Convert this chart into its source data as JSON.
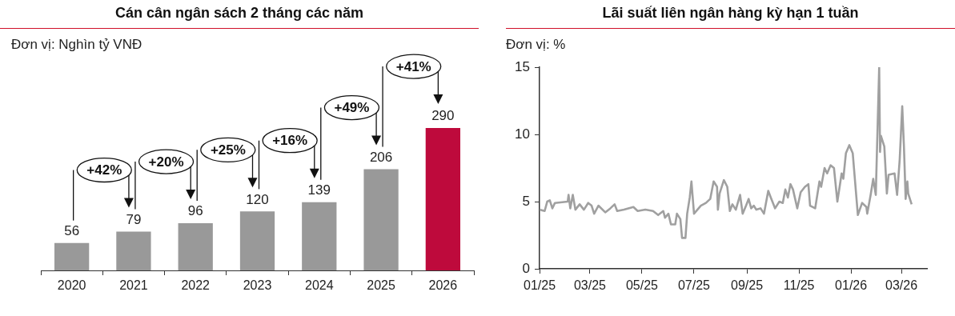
{
  "chart_data": [
    {
      "type": "bar",
      "title": "Cán cân ngân sách 2 tháng các năm",
      "subtitle": "Đơn vị: Nghìn tỷ VNĐ",
      "categories": [
        "2020",
        "2021",
        "2022",
        "2023",
        "2024",
        "2025",
        "2026"
      ],
      "values": [
        56,
        79,
        96,
        120,
        139,
        206,
        290
      ],
      "colors": [
        "#999999",
        "#999999",
        "#999999",
        "#999999",
        "#999999",
        "#999999",
        "#be0a3c"
      ],
      "data_labels": true,
      "grid": false,
      "legend": false,
      "annotations": [
        "+42%",
        "+20%",
        "+25%",
        "+16%",
        "+49%",
        "+41%"
      ]
    },
    {
      "type": "line",
      "title": "Lãi suất liên ngân hàng kỳ hạn 1 tuần",
      "subtitle": "Đơn vị: %",
      "x": [
        "2025-01-01",
        "2025-01-07",
        "2025-01-10",
        "2025-01-13",
        "2025-01-16",
        "2025-01-19",
        "2025-02-03",
        "2025-02-04",
        "2025-02-06",
        "2025-02-09",
        "2025-02-12",
        "2025-02-17",
        "2025-02-22",
        "2025-02-27",
        "2025-03-03",
        "2025-03-06",
        "2025-03-11",
        "2025-03-19",
        "2025-03-25",
        "2025-03-30",
        "2025-04-02",
        "2025-04-10",
        "2025-04-21",
        "2025-04-26",
        "2025-05-05",
        "2025-05-14",
        "2025-05-20",
        "2025-05-26",
        "2025-05-28",
        "2025-06-01",
        "2025-06-04",
        "2025-06-09",
        "2025-06-11",
        "2025-06-15",
        "2025-06-17",
        "2025-06-21",
        "2025-06-23",
        "2025-06-26",
        "2025-06-28",
        "2025-07-01",
        "2025-07-09",
        "2025-07-15",
        "2025-07-20",
        "2025-07-24",
        "2025-07-28",
        "2025-07-29",
        "2025-07-31",
        "2025-08-05",
        "2025-08-09",
        "2025-08-12",
        "2025-08-15",
        "2025-08-19",
        "2025-08-24",
        "2025-08-27",
        "2025-08-31",
        "2025-09-03",
        "2025-09-06",
        "2025-09-09",
        "2025-09-12",
        "2025-09-17",
        "2025-09-21",
        "2025-09-26",
        "2025-09-29",
        "2025-10-04",
        "2025-10-09",
        "2025-10-13",
        "2025-10-16",
        "2025-10-19",
        "2025-10-22",
        "2025-10-25",
        "2025-10-30",
        "2025-11-03",
        "2025-11-08",
        "2025-11-12",
        "2025-11-14",
        "2025-11-20",
        "2025-11-25",
        "2025-11-27",
        "2025-12-01",
        "2025-12-04",
        "2025-12-08",
        "2025-12-12",
        "2025-12-16",
        "2025-12-21",
        "2025-12-23",
        "2025-12-26",
        "2025-12-30",
        "2026-01-03",
        "2026-01-09",
        "2026-01-14",
        "2026-01-19",
        "2026-01-20",
        "2026-01-24",
        "2026-01-27",
        "2026-01-30",
        "2026-02-03",
        "2026-02-04",
        "2026-02-05",
        "2026-02-09",
        "2026-02-12",
        "2026-02-14",
        "2026-02-21",
        "2026-02-24",
        "2026-02-27",
        "2026-03-02",
        "2026-03-04",
        "2026-03-06",
        "2026-03-08",
        "2026-03-09",
        "2026-03-13"
      ],
      "series": [
        {
          "color": "#a0a0a0",
          "values": [
            4.4,
            4.3,
            5.0,
            5.1,
            4.5,
            4.9,
            5.0,
            5.5,
            4.5,
            5.5,
            4.4,
            4.8,
            4.4,
            4.9,
            4.7,
            4.1,
            4.7,
            4.2,
            4.5,
            4.8,
            4.3,
            4.4,
            4.6,
            4.3,
            4.4,
            4.3,
            4.0,
            4.3,
            3.8,
            4.1,
            3.3,
            3.3,
            4.1,
            3.7,
            2.3,
            2.3,
            4.1,
            5.3,
            6.5,
            4.1,
            4.7,
            4.9,
            5.2,
            6.5,
            6.1,
            4.4,
            5.6,
            6.6,
            6.1,
            4.3,
            4.8,
            4.4,
            5.5,
            4.1,
            4.7,
            5.2,
            4.5,
            4.7,
            4.4,
            4.5,
            4.1,
            5.8,
            5.3,
            4.5,
            5.0,
            4.9,
            5.9,
            5.3,
            6.3,
            5.9,
            4.5,
            5.7,
            6.1,
            6.3,
            4.7,
            4.5,
            6.5,
            6.1,
            7.5,
            7.1,
            7.7,
            7.5,
            5.0,
            7.1,
            6.7,
            8.6,
            9.2,
            8.6,
            4.0,
            4.9,
            4.6,
            4.1,
            5.5,
            6.7,
            5.5,
            15.0,
            8.7,
            9.9,
            9.1,
            5.6,
            7.0,
            7.1,
            5.5,
            8.1,
            12.1,
            9.1,
            5.2,
            6.5,
            5.6,
            4.8
          ]
        }
      ],
      "xlim": [
        "2025-01-01",
        "2026-03-31"
      ],
      "xticks": [
        {
          "value": "2025-01-01",
          "label": "01/25"
        },
        {
          "value": "2025-03-01",
          "label": "03/25"
        },
        {
          "value": "2025-05-01",
          "label": "05/25"
        },
        {
          "value": "2025-07-01",
          "label": "07/25"
        },
        {
          "value": "2025-09-01",
          "label": "09/25"
        },
        {
          "value": "2025-11-01",
          "label": "11/25"
        },
        {
          "value": "2026-01-01",
          "label": "01/26"
        },
        {
          "value": "2026-03-01",
          "label": "03/26"
        }
      ],
      "ylim": [
        0,
        15
      ],
      "yticks": [
        0,
        5,
        10,
        15
      ],
      "grid": false,
      "legend": false
    }
  ]
}
